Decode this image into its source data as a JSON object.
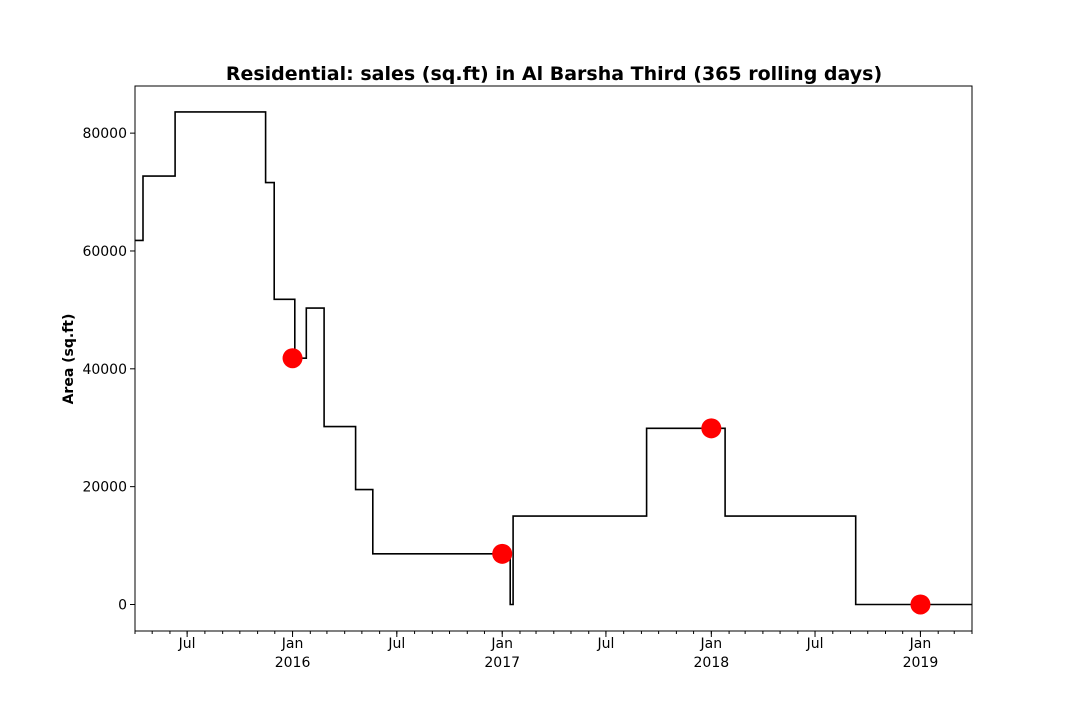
{
  "chart_data": {
    "type": "line",
    "title": "Residential: sales (sq.ft) in Al Barsha Third (365 rolling days)",
    "xlabel": "",
    "ylabel": "Area (sq.ft)",
    "xlim": [
      "2015-04-01",
      "2019-04-01"
    ],
    "ylim": [
      -4500,
      88000
    ],
    "grid": false,
    "line_color": "#000000",
    "marker_color": "#ff0000",
    "yticks": [
      {
        "value": 0,
        "label": "0"
      },
      {
        "value": 20000,
        "label": "20000"
      },
      {
        "value": 40000,
        "label": "40000"
      },
      {
        "value": 60000,
        "label": "60000"
      },
      {
        "value": 80000,
        "label": "80000"
      }
    ],
    "xticks_major": [
      {
        "date": "2015-07-01",
        "label": "Jul",
        "sublabel": ""
      },
      {
        "date": "2016-01-01",
        "label": "Jan",
        "sublabel": "2016"
      },
      {
        "date": "2016-07-01",
        "label": "Jul",
        "sublabel": ""
      },
      {
        "date": "2017-01-01",
        "label": "Jan",
        "sublabel": "2017"
      },
      {
        "date": "2017-07-01",
        "label": "Jul",
        "sublabel": ""
      },
      {
        "date": "2018-01-01",
        "label": "Jan",
        "sublabel": "2018"
      },
      {
        "date": "2018-07-01",
        "label": "Jul",
        "sublabel": ""
      },
      {
        "date": "2019-01-01",
        "label": "Jan",
        "sublabel": "2019"
      }
    ],
    "step_series": {
      "x": [
        "2015-04-01",
        "2015-04-15",
        "2015-05-20",
        "2015-06-10",
        "2015-06-30",
        "2015-07-31",
        "2015-08-31",
        "2015-09-30",
        "2015-10-31",
        "2015-11-15",
        "2015-11-20",
        "2015-11-30",
        "2015-12-15",
        "2015-12-25",
        "2016-01-05",
        "2016-01-25",
        "2016-02-15",
        "2016-02-25",
        "2016-03-20",
        "2016-04-20",
        "2016-05-01",
        "2016-05-20",
        "2016-05-31",
        "2016-06-30",
        "2016-08-31",
        "2016-10-31",
        "2016-12-20",
        "2017-01-15",
        "2017-01-20",
        "2017-02-01",
        "2017-07-15",
        "2017-09-10",
        "2017-11-15",
        "2018-01-01",
        "2018-01-25",
        "2018-03-20",
        "2018-06-30",
        "2018-09-10",
        "2018-10-31",
        "2019-01-01",
        "2019-04-01"
      ],
      "y": [
        61800,
        72700,
        72700,
        83600,
        83600,
        83600,
        83600,
        83600,
        83600,
        71600,
        71600,
        51800,
        51800,
        51800,
        41800,
        50300,
        50300,
        30200,
        30200,
        19500,
        19500,
        8600,
        8600,
        8600,
        8600,
        8600,
        8600,
        0,
        15000,
        15000,
        15000,
        29900,
        29900,
        29900,
        15000,
        15000,
        15000,
        0,
        0,
        0,
        0
      ]
    },
    "markers": [
      {
        "x": "2016-01-01",
        "y": 41800
      },
      {
        "x": "2017-01-01",
        "y": 8600
      },
      {
        "x": "2018-01-01",
        "y": 29900
      },
      {
        "x": "2019-01-01",
        "y": 0
      }
    ]
  }
}
